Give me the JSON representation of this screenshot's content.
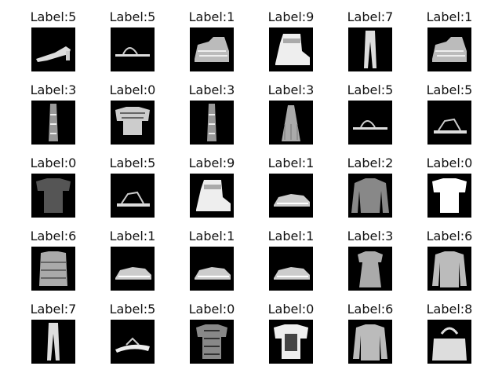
{
  "grid": {
    "rows": [
      [
        {
          "label": "Label:5",
          "item": "sandal-heel"
        },
        {
          "label": "Label:5",
          "item": "sandal-flat"
        },
        {
          "label": "Label:1",
          "item": "sneaker-high"
        },
        {
          "label": "Label:9",
          "item": "ankle-boot"
        },
        {
          "label": "Label:7",
          "item": "trousers"
        },
        {
          "label": "Label:1",
          "item": "sneaker-high"
        }
      ],
      [
        {
          "label": "Label:3",
          "item": "dress-narrow"
        },
        {
          "label": "Label:0",
          "item": "tshirt-wide"
        },
        {
          "label": "Label:3",
          "item": "dress-narrow"
        },
        {
          "label": "Label:3",
          "item": "dress-strappy"
        },
        {
          "label": "Label:5",
          "item": "sandal-flat"
        },
        {
          "label": "Label:5",
          "item": "sandal-strap"
        }
      ],
      [
        {
          "label": "Label:0",
          "item": "tshirt-dark"
        },
        {
          "label": "Label:5",
          "item": "sandal-strap"
        },
        {
          "label": "Label:9",
          "item": "ankle-boot"
        },
        {
          "label": "Label:1",
          "item": "sneaker-low"
        },
        {
          "label": "Label:2",
          "item": "pullover"
        },
        {
          "label": "Label:0",
          "item": "tshirt-white"
        }
      ],
      [
        {
          "label": "Label:6",
          "item": "shirt-sleeveless"
        },
        {
          "label": "Label:1",
          "item": "sneaker-low"
        },
        {
          "label": "Label:1",
          "item": "sneaker-low"
        },
        {
          "label": "Label:1",
          "item": "sneaker-low"
        },
        {
          "label": "Label:3",
          "item": "dress-tshirt"
        },
        {
          "label": "Label:6",
          "item": "shirt-long"
        }
      ],
      [
        {
          "label": "Label:7",
          "item": "trousers"
        },
        {
          "label": "Label:5",
          "item": "flipflop"
        },
        {
          "label": "Label:0",
          "item": "tshirt-patterned"
        },
        {
          "label": "Label:0",
          "item": "tshirt-print"
        },
        {
          "label": "Label:6",
          "item": "shirt-long"
        },
        {
          "label": "Label:8",
          "item": "bag"
        }
      ]
    ]
  }
}
